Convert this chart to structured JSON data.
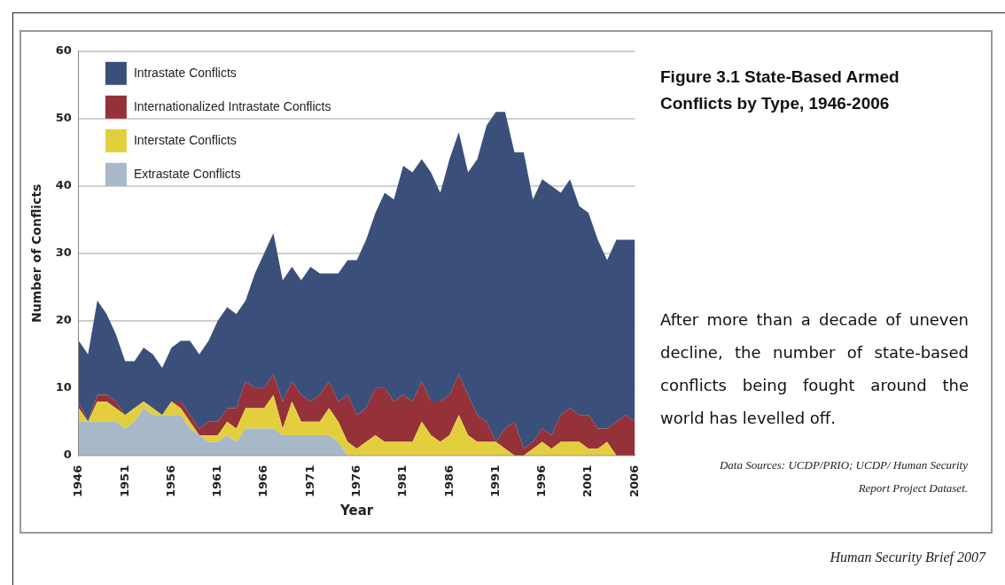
{
  "chart_data": {
    "type": "area",
    "stacked": true,
    "title": "Figure 3.1 State-Based Armed Conflicts by Type, 1946-2006",
    "xlabel": "Year",
    "ylabel": "Number of Conflicts",
    "annotations": [
      "After more than a decade of uneven decline, the number of state-based conflicts being fought around the world has levelled off.",
      "Data Sources: UCDP/PRIO; UCDP/ Human Security Report Project Dataset.",
      "Human Security Brief 2007"
    ],
    "x": [
      1946,
      1947,
      1948,
      1949,
      1950,
      1951,
      1952,
      1953,
      1954,
      1955,
      1956,
      1957,
      1958,
      1959,
      1960,
      1961,
      1962,
      1963,
      1964,
      1965,
      1966,
      1967,
      1968,
      1969,
      1970,
      1971,
      1972,
      1973,
      1974,
      1975,
      1976,
      1977,
      1978,
      1979,
      1980,
      1981,
      1982,
      1983,
      1984,
      1985,
      1986,
      1987,
      1988,
      1989,
      1990,
      1991,
      1992,
      1993,
      1994,
      1995,
      1996,
      1997,
      1998,
      1999,
      2000,
      2001,
      2002,
      2003,
      2004,
      2005,
      2006
    ],
    "series": [
      {
        "name": "Extrastate Conflicts",
        "color": "#a7b8c9",
        "values": [
          5,
          5,
          5,
          5,
          5,
          4,
          5,
          7,
          6,
          6,
          6,
          6,
          4,
          3,
          2,
          2,
          3,
          2,
          4,
          4,
          4,
          4,
          3,
          3,
          3,
          3,
          3,
          3,
          2,
          0,
          0,
          0,
          0,
          0,
          0,
          0,
          0,
          0,
          0,
          0,
          0,
          0,
          0,
          0,
          0,
          0,
          0,
          0,
          0,
          0,
          0,
          0,
          0,
          0,
          0,
          0,
          0,
          0,
          0,
          0,
          0
        ]
      },
      {
        "name": "Interstate Conflicts",
        "color": "#e3cf3e",
        "values": [
          2,
          0,
          3,
          3,
          2,
          2,
          2,
          1,
          1,
          0,
          2,
          1,
          1,
          0,
          1,
          1,
          2,
          2,
          3,
          3,
          3,
          5,
          1,
          5,
          2,
          2,
          2,
          4,
          3,
          2,
          1,
          2,
          3,
          2,
          2,
          2,
          2,
          5,
          3,
          2,
          3,
          6,
          3,
          2,
          2,
          2,
          1,
          0,
          0,
          1,
          2,
          1,
          2,
          2,
          2,
          1,
          1,
          2,
          0,
          0,
          0
        ]
      },
      {
        "name": "Internationalized Intrastate Conflicts",
        "color": "#953138",
        "values": [
          1,
          0,
          1,
          1,
          1,
          0,
          0,
          0,
          0,
          0,
          0,
          1,
          1,
          1,
          2,
          2,
          2,
          3,
          4,
          3,
          3,
          3,
          4,
          3,
          4,
          3,
          4,
          4,
          3,
          7,
          5,
          5,
          7,
          8,
          6,
          7,
          6,
          6,
          5,
          6,
          6,
          6,
          6,
          4,
          3,
          0,
          3,
          5,
          1,
          1,
          2,
          2,
          4,
          5,
          4,
          5,
          3,
          2,
          5,
          6,
          5
        ]
      },
      {
        "name": "Intrastate Conflicts",
        "color": "#3a507b",
        "values": [
          9,
          10,
          14,
          12,
          10,
          8,
          7,
          8,
          8,
          7,
          8,
          9,
          11,
          11,
          12,
          15,
          15,
          14,
          12,
          17,
          20,
          21,
          18,
          17,
          17,
          20,
          18,
          16,
          19,
          20,
          23,
          25,
          26,
          29,
          30,
          34,
          34,
          33,
          34,
          31,
          35,
          36,
          33,
          38,
          44,
          49,
          47,
          40,
          44,
          36,
          37,
          37,
          33,
          34,
          31,
          30,
          28,
          25,
          27,
          26,
          27
        ]
      }
    ],
    "xlim": [
      1946,
      2006
    ],
    "xticks": [
      1946,
      1951,
      1956,
      1961,
      1966,
      1971,
      1976,
      1981,
      1986,
      1991,
      1996,
      2001,
      2006
    ],
    "ylim": [
      0,
      60
    ],
    "yticks": [
      0,
      10,
      20,
      30,
      40,
      50,
      60
    ],
    "grid": "y",
    "legend": "top left",
    "marker": "none"
  }
}
